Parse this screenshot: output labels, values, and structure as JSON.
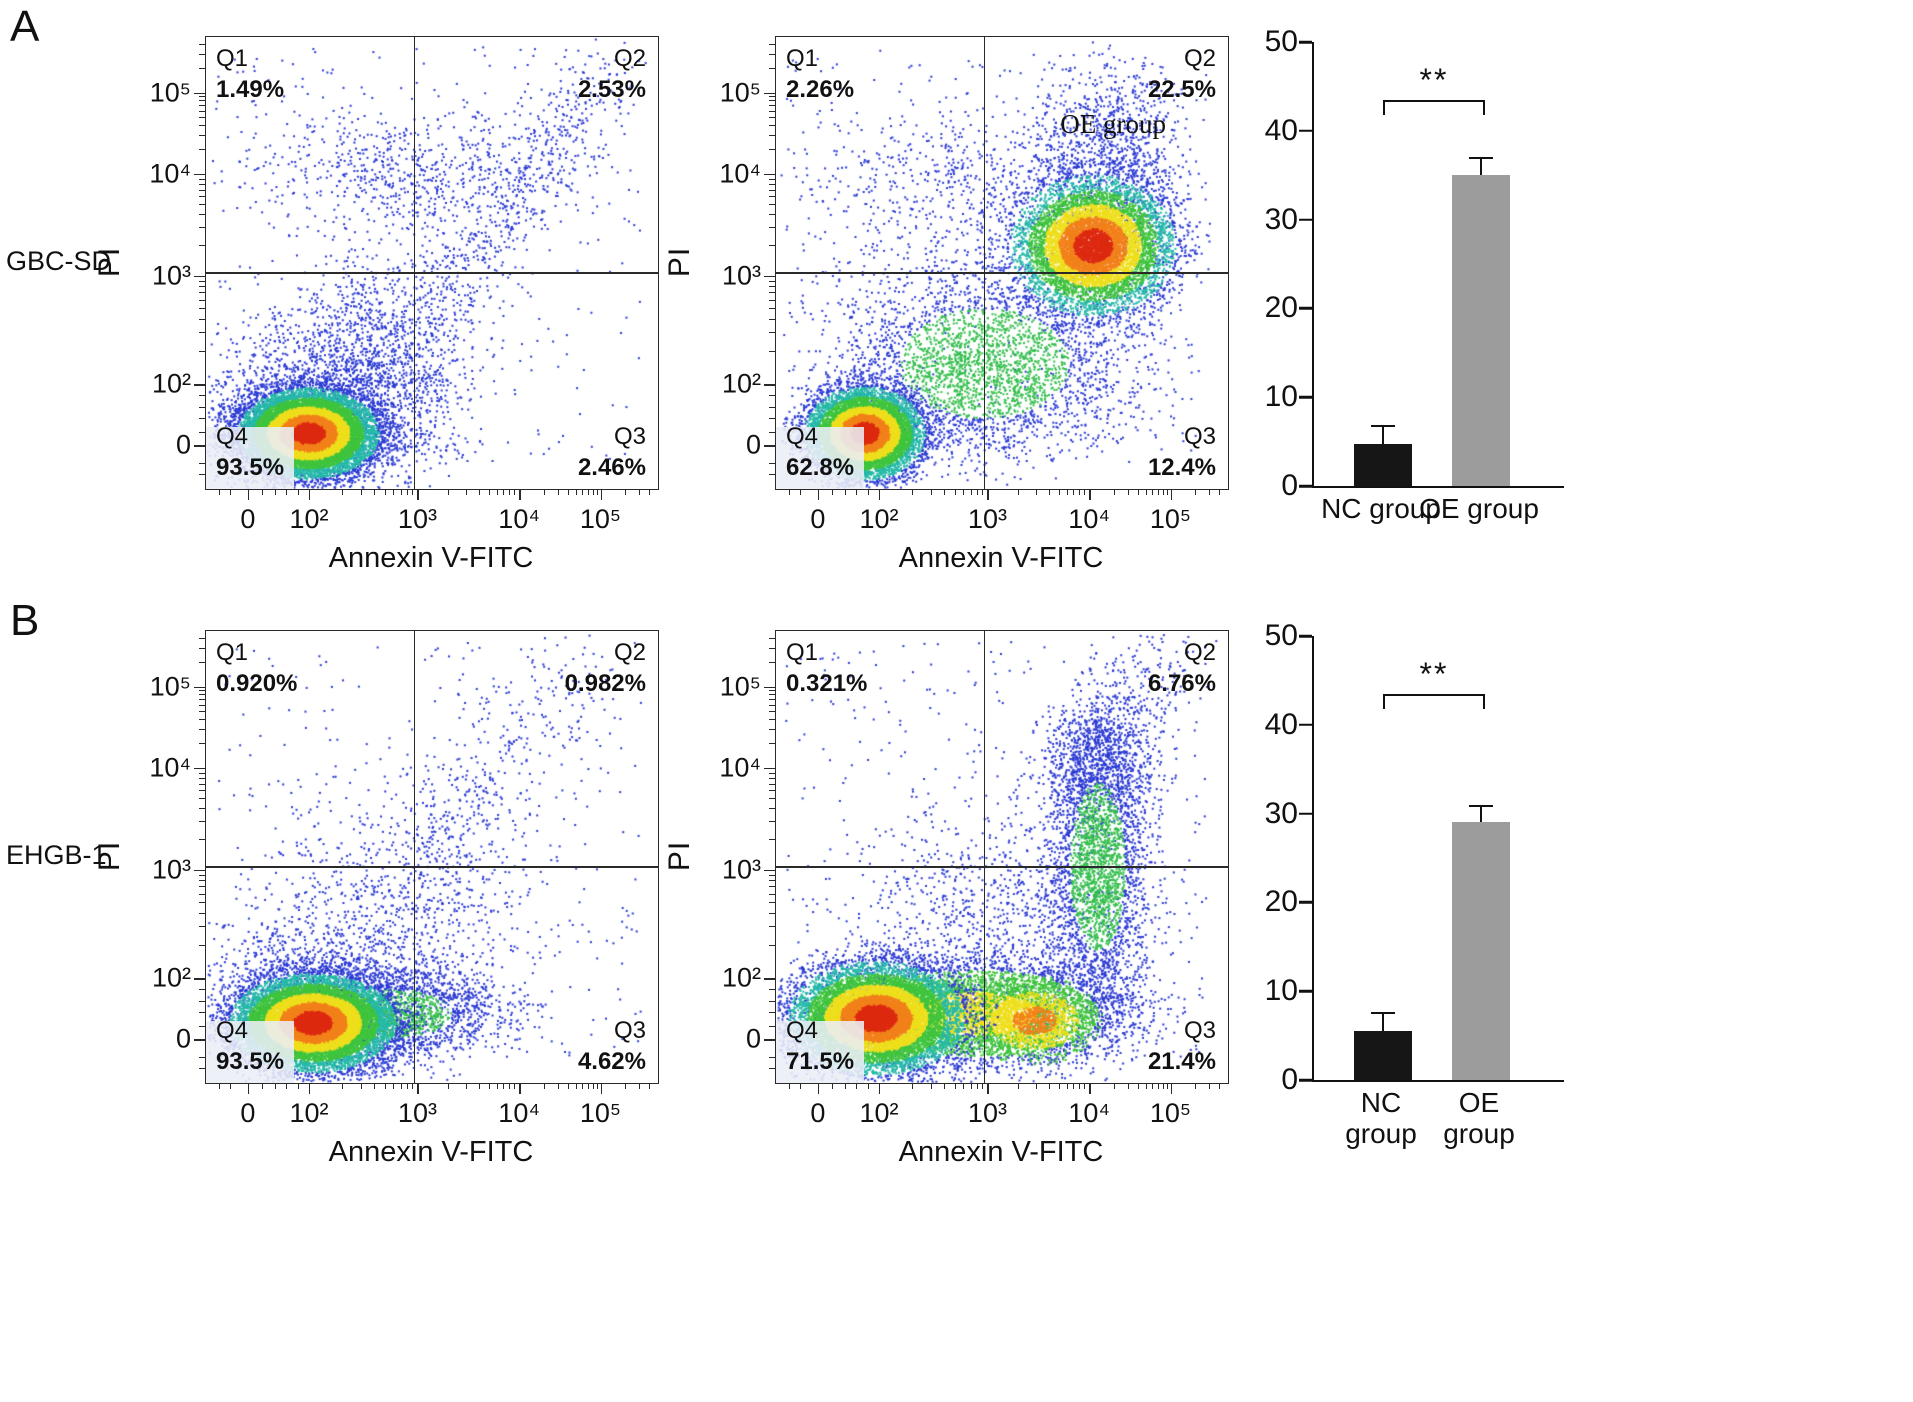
{
  "panel_labels": {
    "a": "A",
    "b": "B"
  },
  "quadrant_names": {
    "q1": "Q1",
    "q2": "Q2",
    "q3": "Q3",
    "q4": "Q4"
  },
  "chart_data": [
    {
      "type": "scatter",
      "panel": "A",
      "cell_line": "GBC-SD",
      "group": "NC group",
      "xlabel": "Annexin V-FITC",
      "ylabel": "PI",
      "x_ticks": [
        "0",
        "10²",
        "10³",
        "10⁴",
        "10⁵"
      ],
      "y_ticks": [
        "10⁵",
        "10⁴",
        "10³",
        "10²",
        "0"
      ],
      "quadrants": {
        "Q1": "1.49%",
        "Q2": "2.53%",
        "Q3": "2.46%",
        "Q4": "93.5%"
      },
      "annotation": ""
    },
    {
      "type": "scatter",
      "panel": "A",
      "cell_line": "GBC-SD",
      "group": "OE group",
      "xlabel": "Annexin V-FITC",
      "ylabel": "PI",
      "x_ticks": [
        "0",
        "10²",
        "10³",
        "10⁴",
        "10⁵"
      ],
      "y_ticks": [
        "10⁵",
        "10⁴",
        "10³",
        "10²",
        "0"
      ],
      "quadrants": {
        "Q1": "2.26%",
        "Q2": "22.5%",
        "Q3": "12.4%",
        "Q4": "62.8%"
      },
      "annotation": "OE group"
    },
    {
      "type": "bar",
      "panel": "A",
      "cell_line": "GBC-SD",
      "categories": [
        "NC group",
        "OE group"
      ],
      "values": [
        4.7,
        35
      ],
      "errors": [
        1.9,
        1.8
      ],
      "ylim": [
        0,
        50
      ],
      "yticks": [
        "50",
        "40",
        "30",
        "20",
        "10",
        "0"
      ],
      "significance": "**",
      "bracket_y": 43.5,
      "colors": [
        "#161616",
        "#9c9c9c"
      ]
    },
    {
      "type": "scatter",
      "panel": "B",
      "cell_line": "EHGB-1",
      "group": "NC group",
      "xlabel": "Annexin V-FITC",
      "ylabel": "PI",
      "x_ticks": [
        "0",
        "10²",
        "10³",
        "10⁴",
        "10⁵"
      ],
      "y_ticks": [
        "10⁵",
        "10⁴",
        "10³",
        "10²",
        "0"
      ],
      "quadrants": {
        "Q1": "0.920%",
        "Q2": "0.982%",
        "Q3": "4.62%",
        "Q4": "93.5%"
      },
      "annotation": ""
    },
    {
      "type": "scatter",
      "panel": "B",
      "cell_line": "EHGB-1",
      "group": "OE group",
      "xlabel": "Annexin V-FITC",
      "ylabel": "PI",
      "x_ticks": [
        "0",
        "10²",
        "10³",
        "10⁴",
        "10⁵"
      ],
      "y_ticks": [
        "10⁵",
        "10⁴",
        "10³",
        "10²",
        "0"
      ],
      "quadrants": {
        "Q1": "0.321%",
        "Q2": "6.76%",
        "Q3": "21.4%",
        "Q4": "71.5%"
      },
      "annotation": ""
    },
    {
      "type": "bar",
      "panel": "B",
      "cell_line": "EHGB-1",
      "categories": [
        "NC group",
        "OE group"
      ],
      "cat_lines": [
        [
          "NC",
          "group"
        ],
        [
          "OE",
          "group"
        ]
      ],
      "values": [
        5.5,
        29
      ],
      "errors": [
        1.9,
        1.7
      ],
      "ylim": [
        0,
        50
      ],
      "yticks": [
        "50",
        "40",
        "30",
        "20",
        "10",
        "0"
      ],
      "significance": "**",
      "bracket_y": 43.5,
      "colors": [
        "#161616",
        "#9c9c9c"
      ]
    }
  ]
}
